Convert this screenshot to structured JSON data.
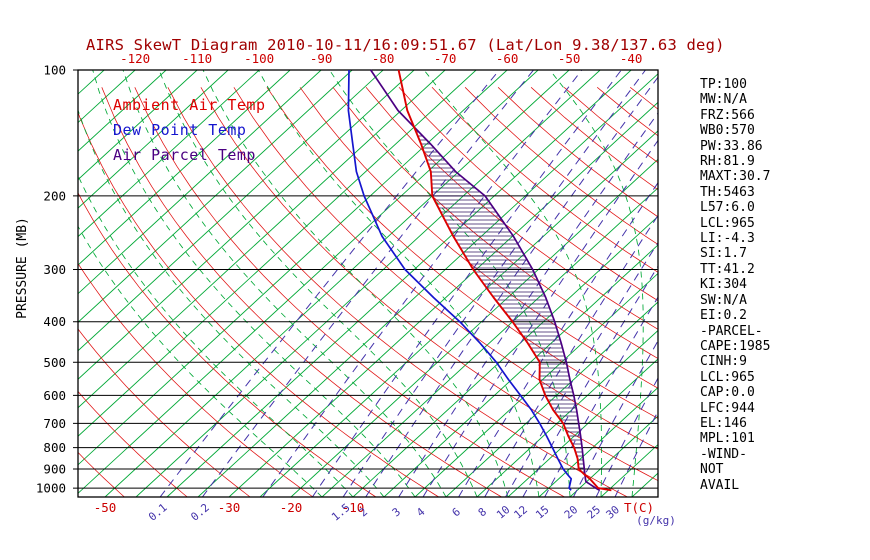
{
  "title": "AIRS SkewT Diagram 2010-10-11/16:09:51.67 (Lat/Lon 9.38/137.63 deg)",
  "legend": {
    "ambient": "Ambient Air Temp",
    "dewpoint": "Dew Point Temp",
    "parcel": "Air Parcel Temp"
  },
  "axes": {
    "y_title": "PRESSURE (MB)",
    "pressure_labels": [
      100,
      200,
      300,
      400,
      500,
      600,
      700,
      800,
      900,
      1000
    ],
    "top_temp_labels": [
      -120,
      -110,
      -100,
      -90,
      -80,
      -70,
      -60,
      -50,
      -40
    ],
    "bottom_temp_labels": [
      -50,
      -30,
      -20,
      -10
    ],
    "bottom_temp_unit": "T(C)",
    "mixing_ratio_labels": [
      0.1,
      0.2,
      1.5,
      2,
      3,
      4,
      6,
      8,
      10,
      12,
      15,
      20,
      25,
      30
    ],
    "mixing_ratio_unit": "(g/kg)"
  },
  "colors": {
    "title_red": "#A00000",
    "label_red": "#CC0000",
    "grid_green": "#00A836",
    "grid_red": "#E01010",
    "mixing_purple": "#4433AA",
    "curve_ambient": "#DD0000",
    "curve_dewpoint": "#1515CE",
    "curve_parcel": "#4B0082",
    "hatch": "#301860",
    "axis_black": "#000000"
  },
  "panel": {
    "items": [
      "TP:100",
      "MW:N/A",
      "FRZ:566",
      "WB0:570",
      "PW:33.86",
      "RH:81.9",
      "MAXT:30.7",
      "TH:5463",
      "L57:6.0",
      "LCL:965",
      "LI:-4.3",
      "SI:1.7",
      "TT:41.2",
      "KI:304",
      "SW:N/A",
      "EI:0.2",
      "-PARCEL-",
      "CAPE:1985",
      "CINH:9",
      "LCL:965",
      "CAP:0.0",
      "LFC:944",
      "EL:146",
      "MPL:101",
      "-WIND-",
      "NOT",
      "AVAIL"
    ]
  },
  "chart_data": {
    "type": "skewt-log-p",
    "pressure_axis_hpa": {
      "min": 100,
      "max": 1050,
      "scale": "log",
      "gridlines": [
        100,
        200,
        300,
        400,
        500,
        600,
        700,
        800,
        900,
        1000
      ]
    },
    "temp_at_surface_range_c": [
      -50,
      40
    ],
    "isotherm_step_c": 5,
    "dry_adiabat_theta_k": {
      "start": -60,
      "end": 230,
      "step": 10
    },
    "moist_adiabat_surface_temps_c": {
      "start": -15,
      "end": 45,
      "step": 5
    },
    "mixing_ratio_lines_g_kg": [
      0.1,
      0.2,
      0.5,
      1,
      1.5,
      2,
      3,
      4,
      6,
      8,
      10,
      12,
      15,
      20,
      25,
      30
    ],
    "series": [
      {
        "name": "Ambient Air Temp",
        "color_key": "curve_ambient",
        "pressure_hpa": [
          1012,
          1000,
          950,
          925,
          900,
          850,
          800,
          750,
          700,
          650,
          600,
          550,
          500,
          450,
          400,
          350,
          300,
          250,
          200,
          175,
          150,
          125,
          100
        ],
        "temp_c": [
          30.5,
          28.0,
          25.0,
          23.2,
          21.5,
          19.5,
          17.0,
          14.0,
          11.0,
          7.0,
          3.2,
          -0.5,
          -3.5,
          -8.8,
          -15.0,
          -22.3,
          -30.5,
          -39.5,
          -50.0,
          -54.5,
          -61.0,
          -69.0,
          -77.5
        ]
      },
      {
        "name": "Dew Point Temp",
        "color_key": "curve_dewpoint",
        "pressure_hpa": [
          1012,
          1000,
          950,
          925,
          900,
          850,
          800,
          750,
          700,
          650,
          600,
          550,
          500,
          450,
          400,
          350,
          300,
          250,
          200,
          175,
          150,
          125,
          100
        ],
        "temp_c": [
          24.0,
          23.3,
          22.0,
          20.5,
          19.0,
          16.3,
          13.5,
          10.5,
          7.2,
          3.5,
          -0.8,
          -5.5,
          -10.5,
          -16.5,
          -23.5,
          -32.0,
          -41.5,
          -51.0,
          -61.0,
          -66.5,
          -72.0,
          -78.5,
          -85.5
        ]
      },
      {
        "name": "Air Parcel Temp",
        "color_key": "curve_parcel",
        "pressure_hpa": [
          1012,
          1000,
          965,
          950,
          900,
          850,
          800,
          750,
          700,
          650,
          600,
          550,
          500,
          450,
          400,
          350,
          300,
          250,
          200,
          175,
          150,
          125,
          100
        ],
        "temp_c": [
          28.6,
          27.6,
          24.9,
          24.3,
          22.4,
          20.4,
          18.3,
          16.0,
          13.5,
          10.8,
          7.8,
          4.4,
          0.8,
          -3.4,
          -8.2,
          -13.9,
          -20.9,
          -29.8,
          -41.5,
          -50.5,
          -59.5,
          -70.5,
          -82.0
        ]
      }
    ],
    "derived_indices": {
      "LCL_hpa": 965,
      "LFC_hpa": 944,
      "EL_hpa": 146,
      "CAPE_j_kg": 1985,
      "CINH_j_kg": 9,
      "LI": -4.3
    }
  }
}
